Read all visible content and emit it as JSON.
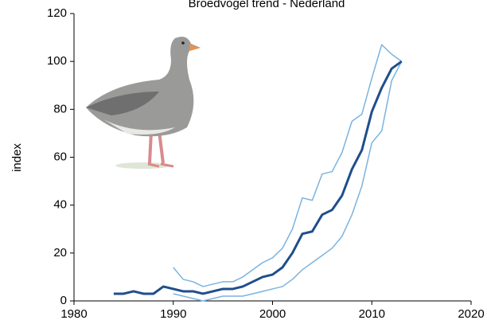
{
  "chart_data": {
    "type": "line",
    "title": "Broedvogel trend - Nederland",
    "y_label": "index",
    "x": [
      1984,
      1985,
      1986,
      1987,
      1988,
      1989,
      1990,
      1991,
      1992,
      1993,
      1994,
      1995,
      1996,
      1997,
      1998,
      1999,
      2000,
      2001,
      2002,
      2003,
      2004,
      2005,
      2006,
      2007,
      2008,
      2009,
      2010,
      2011,
      2012,
      2013
    ],
    "series": [
      {
        "color": "#7ab3e0",
        "width": 1.5,
        "values": [
          null,
          null,
          null,
          null,
          null,
          null,
          14,
          9,
          8,
          6,
          7,
          8,
          8,
          10,
          13,
          16,
          18,
          22,
          30,
          43,
          42,
          53,
          54,
          62,
          75,
          78,
          93,
          107,
          103,
          100
        ]
      },
      {
        "color": "#7ab3e0",
        "width": 1.5,
        "values": [
          null,
          null,
          null,
          null,
          null,
          null,
          3,
          2,
          1,
          0,
          1,
          2,
          2,
          2,
          3,
          4,
          5,
          6,
          9,
          13,
          16,
          19,
          22,
          27,
          36,
          48,
          66,
          71,
          92,
          100
        ]
      },
      {
        "color": "#1f4e8c",
        "width": 3,
        "values": [
          3,
          3,
          4,
          3,
          3,
          6,
          5,
          4,
          4,
          3,
          4,
          5,
          5,
          6,
          8,
          10,
          11,
          14,
          20,
          28,
          29,
          36,
          38,
          44,
          55,
          63,
          79,
          89,
          97,
          100
        ]
      }
    ],
    "xlim": [
      1980,
      2020
    ],
    "xticks": [
      1980,
      1990,
      2000,
      2010,
      2020
    ],
    "ylim": [
      0,
      120
    ],
    "yticks": [
      0,
      20,
      40,
      60,
      80,
      100,
      120
    ]
  }
}
